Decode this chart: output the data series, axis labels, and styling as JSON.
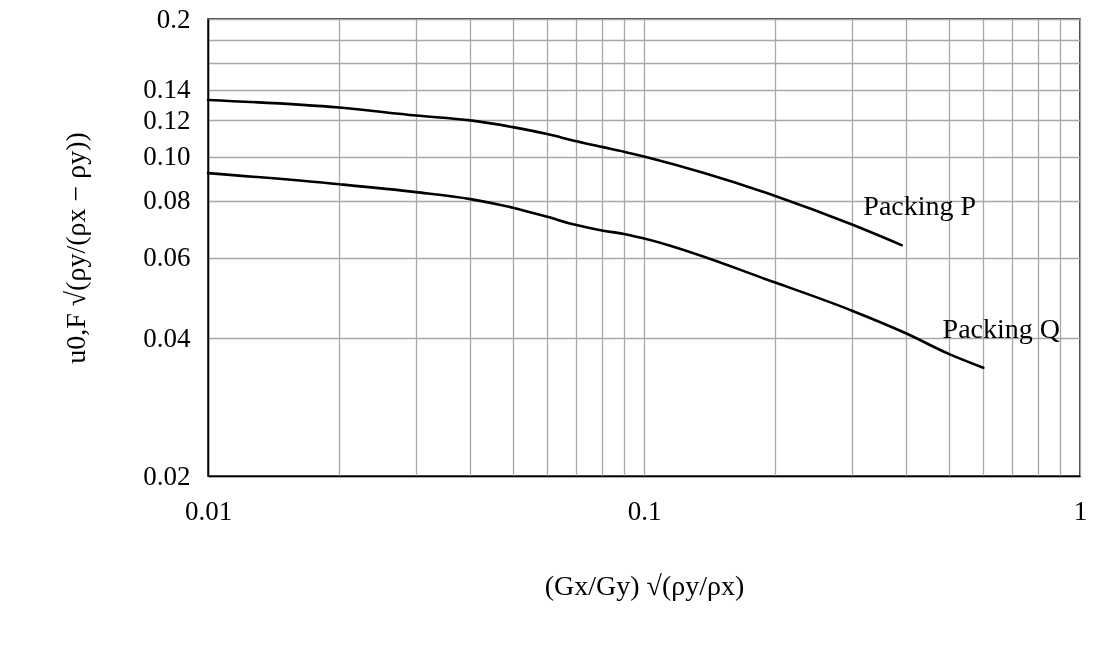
{
  "chart_data": {
    "type": "line",
    "xlabel": "(Gx/Gy) √(ρy/ρx)",
    "ylabel": "u0,F √(ρy/(ρx − ρy))",
    "log": "xy",
    "grid": true,
    "xlim": [
      0.01,
      1
    ],
    "ylim": [
      0.02,
      0.2
    ],
    "xticks": [
      0.01,
      {
        "value": 0.02,
        "label": null
      },
      {
        "value": 0.03,
        "label": null
      },
      {
        "value": 0.04,
        "label": null
      },
      {
        "value": 0.05,
        "label": null
      },
      {
        "value": 0.06,
        "label": null
      },
      {
        "value": 0.07,
        "label": null
      },
      {
        "value": 0.08,
        "label": null
      },
      {
        "value": 0.09,
        "label": null
      },
      0.1,
      {
        "value": 0.2,
        "label": null
      },
      {
        "value": 0.3,
        "label": null
      },
      {
        "value": 0.4,
        "label": null
      },
      {
        "value": 0.5,
        "label": null
      },
      {
        "value": 0.6,
        "label": null
      },
      {
        "value": 0.7,
        "label": null
      },
      {
        "value": 0.8,
        "label": null
      },
      {
        "value": 0.9,
        "label": null
      },
      1
    ],
    "yticks": [
      0.02,
      0.04,
      0.06,
      0.08,
      {
        "value": 0.1,
        "label": "0.10"
      },
      0.12,
      0.14,
      {
        "value": 0.16,
        "label": null
      },
      {
        "value": 0.18,
        "label": null
      },
      0.2
    ],
    "series": [
      {
        "name": "Packing P",
        "color": "#000000",
        "x": [
          0.01,
          0.02,
          0.03,
          0.04,
          0.05,
          0.06,
          0.07,
          0.08,
          0.09,
          0.1,
          0.2,
          0.3,
          0.39
        ],
        "values": [
          0.133,
          0.128,
          0.123,
          0.12,
          0.116,
          0.112,
          0.108,
          0.105,
          0.1025,
          0.1,
          0.082,
          0.071,
          0.064
        ]
      },
      {
        "name": "Packing Q",
        "color": "#000000",
        "x": [
          0.01,
          0.02,
          0.03,
          0.04,
          0.05,
          0.06,
          0.07,
          0.08,
          0.09,
          0.1,
          0.2,
          0.3,
          0.4,
          0.5,
          0.6
        ],
        "values": [
          0.092,
          0.087,
          0.0836,
          0.0807,
          0.0773,
          0.0738,
          0.0708,
          0.0689,
          0.0677,
          0.0662,
          0.053,
          0.046,
          0.041,
          0.037,
          0.0345
        ]
      }
    ]
  }
}
